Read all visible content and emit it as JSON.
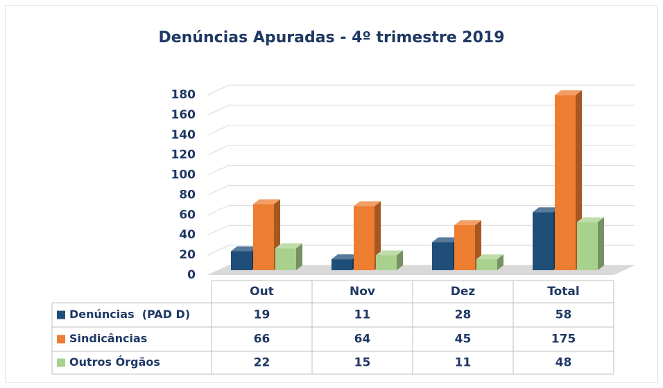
{
  "chart_data": {
    "type": "bar3d",
    "title": "Denúncias Apuradas - 4º trimestre 2019",
    "categories": [
      "Out",
      "Nov",
      "Dez",
      "Total"
    ],
    "series": [
      {
        "name": "Denúncias  (PAD D)",
        "color": "#1f4e79",
        "values": [
          19,
          11,
          28,
          58
        ]
      },
      {
        "name": "Sindicâncias",
        "color": "#ed7d31",
        "values": [
          66,
          64,
          45,
          175
        ]
      },
      {
        "name": "Outros Órgãos",
        "color": "#a9d18e",
        "values": [
          22,
          15,
          11,
          48
        ]
      }
    ],
    "ylim": [
      0,
      180
    ],
    "yticks": [
      0,
      20,
      40,
      60,
      80,
      100,
      120,
      140,
      160,
      180
    ],
    "grid": true
  }
}
